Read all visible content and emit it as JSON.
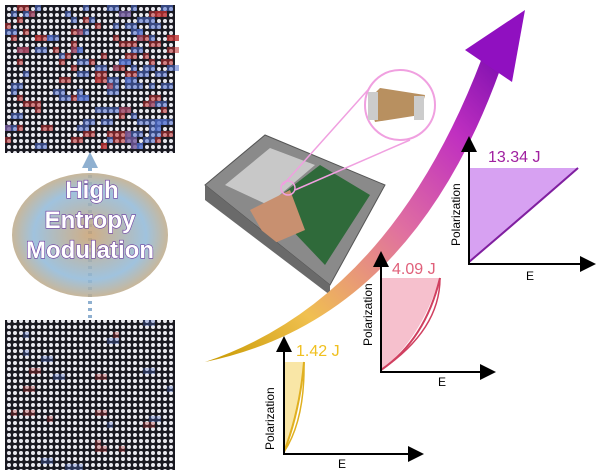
{
  "diagram": {
    "center_label": [
      "High",
      "Entropy",
      "Modulation"
    ],
    "plots": [
      {
        "energy": "1.42 J",
        "y_label": "Polarization",
        "x_label": "E"
      },
      {
        "energy": "4.09 J",
        "y_label": "Polarization",
        "x_label": "E"
      },
      {
        "energy": "13.34 J",
        "y_label": "Polarization",
        "x_label": "E"
      }
    ]
  }
}
